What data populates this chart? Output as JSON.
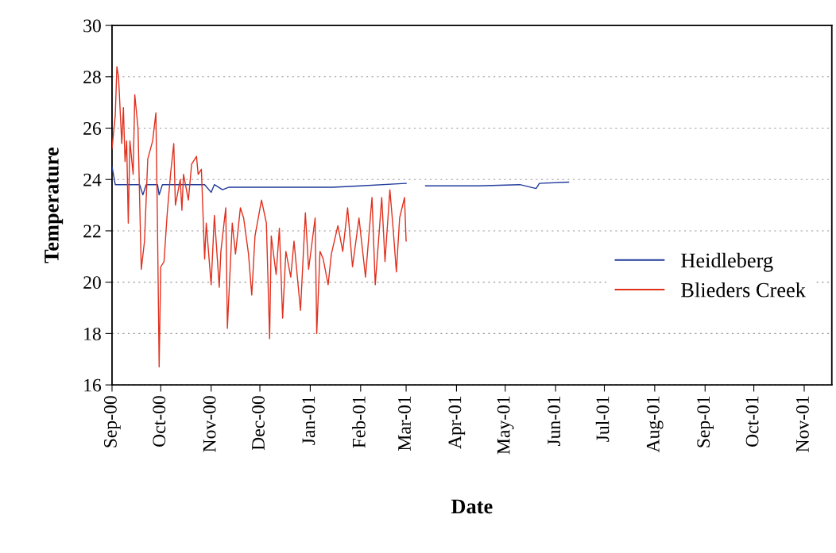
{
  "chart_data": {
    "type": "line",
    "xlabel": "Date",
    "ylabel": "Temperature",
    "xlim": [
      "2000-09-01",
      "2001-11-18"
    ],
    "xticks": [
      {
        "value": "2000-09-01",
        "label": "Sep-00"
      },
      {
        "value": "2000-10-01",
        "label": "Oct-00"
      },
      {
        "value": "2000-11-01",
        "label": "Nov-00"
      },
      {
        "value": "2000-12-01",
        "label": "Dec-00"
      },
      {
        "value": "2001-01-01",
        "label": "Jan-01"
      },
      {
        "value": "2001-02-01",
        "label": "Feb-01"
      },
      {
        "value": "2001-03-01",
        "label": "Mar-01"
      },
      {
        "value": "2001-04-01",
        "label": "Apr-01"
      },
      {
        "value": "2001-05-01",
        "label": "May-01"
      },
      {
        "value": "2001-06-01",
        "label": "Jun-01"
      },
      {
        "value": "2001-07-01",
        "label": "Jul-01"
      },
      {
        "value": "2001-08-01",
        "label": "Aug-01"
      },
      {
        "value": "2001-09-01",
        "label": "Sep-01"
      },
      {
        "value": "2001-10-01",
        "label": "Oct-01"
      },
      {
        "value": "2001-11-01",
        "label": "Nov-01"
      }
    ],
    "ylim": [
      16,
      30
    ],
    "yticks": [
      16,
      18,
      20,
      22,
      24,
      26,
      28,
      30
    ],
    "grid": "y",
    "legend": "right",
    "marker": "none",
    "line_style": "solid",
    "series": [
      {
        "name": "Heidleberg",
        "color": "#1f3a9a",
        "x": [
          "2000-09-01",
          "2000-09-03",
          "2000-09-18",
          "2000-09-20",
          "2000-09-22",
          "2000-09-29",
          "2000-09-30",
          "2000-10-02",
          "2000-10-28",
          "2000-11-01",
          "2000-11-03",
          "2000-11-08",
          "2000-11-12",
          "2000-11-15",
          "2000-12-15",
          "2001-01-15",
          "2001-02-01",
          "2001-03-01",
          "2001-03-07",
          "2001-03-13",
          "2001-04-15",
          "2001-05-10",
          "2001-05-20",
          "2001-05-22",
          "2001-06-09"
        ],
        "values": [
          24.5,
          23.8,
          23.8,
          23.4,
          23.8,
          23.8,
          23.4,
          23.8,
          23.8,
          23.5,
          23.8,
          23.6,
          23.7,
          23.7,
          23.7,
          23.7,
          23.75,
          23.85,
          null,
          23.75,
          23.75,
          23.8,
          23.65,
          23.85,
          23.9
        ]
      },
      {
        "name": "Blieders Creek",
        "color": "#e0301e",
        "x": [
          "2000-09-01",
          "2000-09-03",
          "2000-09-04",
          "2000-09-05",
          "2000-09-07",
          "2000-09-08",
          "2000-09-09",
          "2000-09-10",
          "2000-09-11",
          "2000-09-12",
          "2000-09-14",
          "2000-09-15",
          "2000-09-17",
          "2000-09-18",
          "2000-09-19",
          "2000-09-21",
          "2000-09-23",
          "2000-09-26",
          "2000-09-28",
          "2000-09-29",
          "2000-09-30",
          "2000-10-01",
          "2000-10-03",
          "2000-10-05",
          "2000-10-07",
          "2000-10-09",
          "2000-10-10",
          "2000-10-13",
          "2000-10-14",
          "2000-10-15",
          "2000-10-18",
          "2000-10-20",
          "2000-10-23",
          "2000-10-24",
          "2000-10-26",
          "2000-10-28",
          "2000-10-29",
          "2000-11-01",
          "2000-11-03",
          "2000-11-06",
          "2000-11-07",
          "2000-11-10",
          "2000-11-11",
          "2000-11-14",
          "2000-11-16",
          "2000-11-19",
          "2000-11-21",
          "2000-11-24",
          "2000-11-26",
          "2000-11-28",
          "2000-12-02",
          "2000-12-05",
          "2000-12-07",
          "2000-12-08",
          "2000-12-11",
          "2000-12-13",
          "2000-12-15",
          "2000-12-17",
          "2000-12-20",
          "2000-12-22",
          "2000-12-26",
          "2000-12-29",
          "2000-12-31",
          "2001-01-04",
          "2001-01-05",
          "2001-01-07",
          "2001-01-09",
          "2001-01-12",
          "2001-01-14",
          "2001-01-18",
          "2001-01-21",
          "2001-01-24",
          "2001-01-27",
          "2001-01-31",
          "2001-02-04",
          "2001-02-08",
          "2001-02-10",
          "2001-02-14",
          "2001-02-16",
          "2001-02-19",
          "2001-02-21",
          "2001-02-23",
          "2001-02-25",
          "2001-02-28",
          "2001-03-01"
        ],
        "values": [
          25.2,
          26.5,
          28.4,
          28.0,
          25.4,
          26.8,
          24.7,
          25.5,
          22.3,
          25.5,
          24.2,
          27.3,
          26.0,
          23.2,
          20.5,
          21.6,
          24.8,
          25.5,
          26.6,
          22.1,
          16.7,
          20.6,
          20.8,
          22.7,
          24.2,
          25.4,
          23.0,
          24.0,
          22.8,
          24.2,
          23.2,
          24.6,
          24.9,
          24.2,
          24.4,
          20.9,
          22.3,
          19.9,
          22.6,
          19.8,
          21.2,
          22.9,
          18.2,
          22.3,
          21.1,
          22.9,
          22.5,
          21.1,
          19.5,
          21.8,
          23.2,
          22.3,
          17.8,
          21.8,
          20.3,
          22.1,
          18.6,
          21.2,
          20.2,
          21.6,
          18.9,
          22.7,
          20.5,
          22.5,
          18.0,
          21.2,
          20.9,
          19.9,
          21.1,
          22.2,
          21.2,
          22.9,
          20.6,
          22.5,
          20.2,
          23.3,
          19.9,
          23.3,
          20.8,
          23.6,
          22.1,
          20.4,
          22.5,
          23.3,
          21.6
        ]
      }
    ]
  }
}
